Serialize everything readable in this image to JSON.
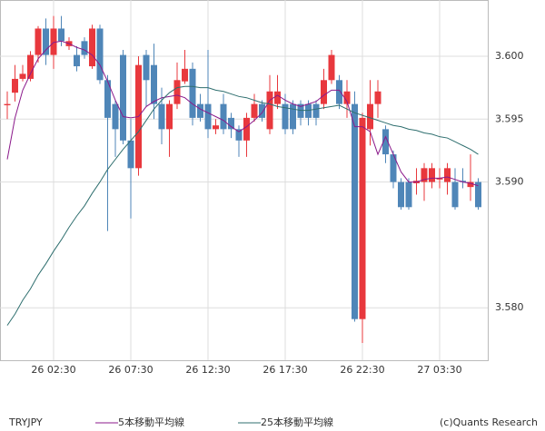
{
  "chart_data": {
    "type": "candlestick",
    "symbol": "TRYJPY",
    "copyright": "(c)Quants Research",
    "categories": [
      null,
      null,
      null,
      null,
      null,
      null,
      "26 02:30",
      null,
      null,
      null,
      null,
      null,
      null,
      null,
      null,
      null,
      "26 07:30",
      null,
      null,
      null,
      null,
      null,
      null,
      null,
      null,
      null,
      "26 12:30",
      null,
      null,
      null,
      null,
      null,
      null,
      null,
      null,
      null,
      "26 17:30",
      null,
      null,
      null,
      null,
      null,
      null,
      null,
      null,
      null,
      "26 22:30",
      null,
      null,
      null,
      null,
      null,
      null,
      null,
      null,
      null,
      "27 03:30",
      null,
      null,
      null,
      null,
      null
    ],
    "open": [
      3.5961,
      3.5971,
      3.5982,
      3.5982,
      3.6001,
      3.6022,
      3.6001,
      3.6022,
      3.6008,
      3.6001,
      3.6012,
      3.5992,
      3.6022,
      3.5981,
      3.5962,
      3.6001,
      3.5933,
      3.5911,
      3.6001,
      3.5993,
      3.5962,
      3.5942,
      3.5962,
      3.598,
      3.599,
      3.5962,
      3.5962,
      3.5942,
      3.5962,
      3.5951,
      3.5942,
      3.5933,
      3.5951,
      3.5962,
      3.5942,
      3.5962,
      3.5962,
      3.5962,
      3.5962,
      3.5962,
      3.5962,
      3.5962,
      3.5981,
      3.5981,
      3.5962,
      3.5962,
      3.5791,
      3.5942,
      3.5962,
      3.5942,
      3.5922,
      3.59,
      3.59,
      3.5899,
      3.59,
      3.59,
      3.5902,
      3.59,
      3.59,
      3.5901,
      3.5896,
      3.59
    ],
    "high": [
      3.5972,
      3.5993,
      3.5993,
      3.6004,
      3.6024,
      3.603,
      3.6032,
      3.6032,
      3.6015,
      3.6008,
      3.6015,
      3.6025,
      3.6025,
      3.5985,
      3.5965,
      3.6005,
      3.595,
      3.6,
      3.6005,
      3.601,
      3.5975,
      3.5965,
      3.5995,
      3.6005,
      3.5995,
      3.597,
      3.6005,
      3.595,
      3.597,
      3.5955,
      3.5945,
      3.5955,
      3.597,
      3.5965,
      3.5985,
      3.5985,
      3.597,
      3.5965,
      3.5965,
      3.5965,
      3.5965,
      3.599,
      3.6005,
      3.5985,
      3.5981,
      3.5972,
      3.5955,
      3.5981,
      3.5981,
      3.5945,
      3.5925,
      3.5903,
      3.5903,
      3.5911,
      3.5915,
      3.5915,
      3.5911,
      3.5915,
      3.5911,
      3.5911,
      3.5922,
      3.5903
    ],
    "low": [
      3.595,
      3.5964,
      3.598,
      3.598,
      3.5995,
      3.5993,
      3.599,
      3.6008,
      3.6005,
      3.5988,
      3.5998,
      3.599,
      3.5978,
      3.5861,
      3.592,
      3.593,
      3.5871,
      3.5905,
      3.596,
      3.595,
      3.593,
      3.592,
      3.5958,
      3.5978,
      3.5945,
      3.5948,
      3.5935,
      3.5938,
      3.5938,
      3.5935,
      3.592,
      3.592,
      3.5948,
      3.5948,
      3.5938,
      3.5958,
      3.5938,
      3.5938,
      3.5945,
      3.5945,
      3.5945,
      3.5958,
      3.5978,
      3.5958,
      3.5951,
      3.5789,
      3.5772,
      3.5929,
      3.5951,
      3.5915,
      3.5895,
      3.5878,
      3.5878,
      3.589,
      3.5885,
      3.5895,
      3.5895,
      3.589,
      3.5878,
      3.5895,
      3.5885,
      3.5878
    ],
    "close": [
      3.5962,
      3.5982,
      3.5986,
      3.6001,
      3.6022,
      3.6001,
      3.6022,
      3.6012,
      3.6012,
      3.5992,
      3.6001,
      3.6022,
      3.5981,
      3.5951,
      3.5942,
      3.5933,
      3.5911,
      3.5993,
      3.5981,
      3.5962,
      3.5942,
      3.5962,
      3.5981,
      3.599,
      3.5951,
      3.5951,
      3.5942,
      3.5945,
      3.5942,
      3.5942,
      3.5933,
      3.5951,
      3.5962,
      3.5951,
      3.5972,
      3.5972,
      3.5942,
      3.5942,
      3.5951,
      3.5951,
      3.5951,
      3.5981,
      3.6001,
      3.5962,
      3.5972,
      3.5791,
      3.5951,
      3.5962,
      3.5972,
      3.5922,
      3.59,
      3.588,
      3.588,
      3.5901,
      3.5911,
      3.5911,
      3.5903,
      3.5911,
      3.588,
      3.59,
      3.59,
      3.588
    ],
    "up_color": "#e8383d",
    "down_color": "#4f86b8",
    "lines": [
      {
        "name": "5本移動平均線",
        "color": "#8b1a8b",
        "values": [
          3.5918,
          3.5951,
          3.5973,
          3.5986,
          3.5998,
          3.6005,
          3.6011,
          3.6012,
          3.601,
          3.6007,
          3.6005,
          3.6001,
          3.5993,
          3.598,
          3.5965,
          3.5952,
          3.5951,
          3.5952,
          3.596,
          3.5964,
          3.5967,
          3.5968,
          3.5969,
          3.5967,
          3.5962,
          3.5958,
          3.5955,
          3.5952,
          3.5949,
          3.5944,
          3.594,
          3.5944,
          3.5949,
          3.5955,
          3.5965,
          3.5969,
          3.5965,
          3.5962,
          3.596,
          3.5962,
          3.5964,
          3.5969,
          3.5973,
          3.5973,
          3.5964,
          3.5944,
          3.5944,
          3.594,
          3.5922,
          3.5936,
          3.5922,
          3.5908,
          3.59,
          3.59,
          3.5902,
          3.5903,
          3.5903,
          3.5904,
          3.5902,
          3.59,
          3.5899,
          3.5897
        ]
      },
      {
        "name": "25本移動平均線",
        "color": "#2f6f6f",
        "values": [
          3.5786,
          3.5795,
          3.5806,
          3.5815,
          3.5826,
          3.5835,
          3.5845,
          3.5854,
          3.5864,
          3.5873,
          3.5881,
          3.5891,
          3.59,
          3.591,
          3.5918,
          3.5926,
          3.5933,
          3.594,
          3.5949,
          3.5958,
          3.5965,
          3.5971,
          3.5975,
          3.5976,
          3.5976,
          3.5975,
          3.5975,
          3.5973,
          3.5972,
          3.597,
          3.5968,
          3.5967,
          3.5965,
          3.5963,
          3.5962,
          3.596,
          3.5959,
          3.5958,
          3.5957,
          3.5957,
          3.5958,
          3.5959,
          3.596,
          3.5961,
          3.5958,
          3.5955,
          3.5953,
          3.5951,
          3.5949,
          3.5947,
          3.5945,
          3.5944,
          3.5942,
          3.5941,
          3.5939,
          3.5938,
          3.5936,
          3.5935,
          3.5932,
          3.5929,
          3.5926,
          3.5922
        ]
      }
    ],
    "ylim": [
      3.57583,
      3.60447
    ],
    "yticks": [
      {
        "value": 3.6,
        "label": "3.600"
      },
      {
        "value": 3.595,
        "label": "3.595"
      },
      {
        "value": 3.59,
        "label": "3.590"
      },
      {
        "value": 3.58,
        "label": "3.580"
      }
    ],
    "grid": true
  }
}
